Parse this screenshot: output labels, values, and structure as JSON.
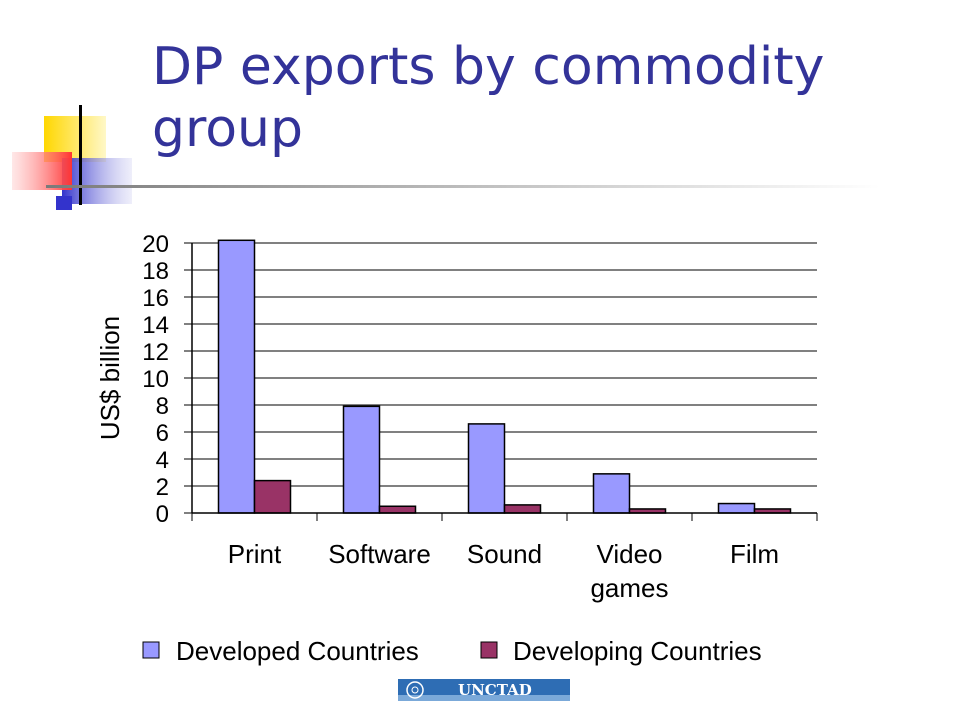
{
  "slide": {
    "title": "DP exports by commodity group"
  },
  "footer": {
    "logo_text": "UNCTAD"
  },
  "colors": {
    "title": "#333399",
    "developed": "#9999FF",
    "developing": "#993366",
    "logo_blue": "#2E6DB4"
  },
  "chart_data": {
    "type": "bar",
    "categories": [
      "Print",
      "Software",
      "Sound",
      "Video games",
      "Film"
    ],
    "series": [
      {
        "name": "Developed Countries",
        "color": "#9999FF",
        "values": [
          20.2,
          7.9,
          6.6,
          2.9,
          0.7
        ]
      },
      {
        "name": "Developing Countries",
        "color": "#993366",
        "values": [
          2.4,
          0.5,
          0.6,
          0.3,
          0.3
        ]
      }
    ],
    "title": "",
    "xlabel": "",
    "ylabel": "US$ billion",
    "ylim": [
      0,
      20
    ],
    "yticks": [
      0,
      2,
      4,
      6,
      8,
      10,
      12,
      14,
      16,
      18,
      20
    ],
    "grid": true,
    "legend_position": "bottom"
  }
}
